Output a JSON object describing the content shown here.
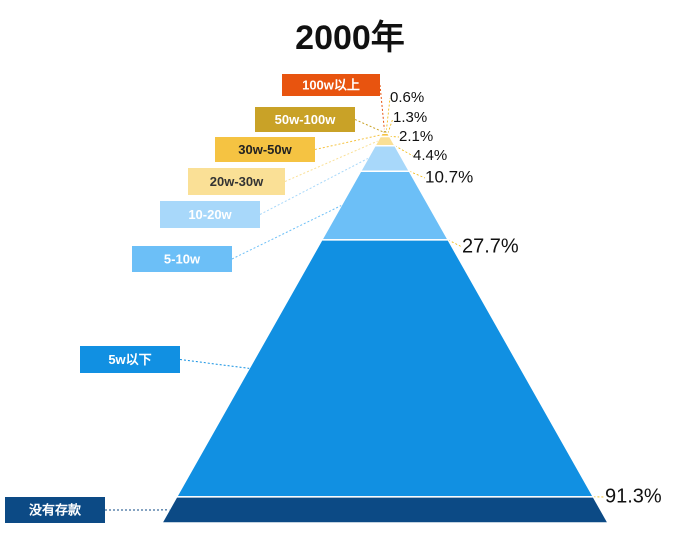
{
  "chart_data": {
    "type": "pyramid",
    "title": "2000年",
    "categories": [
      "100w以上",
      "50w-100w",
      "30w-50w",
      "20w-30w",
      "10-20w",
      "5-10w",
      "5w以下",
      "没有存款"
    ],
    "values": [
      0.6,
      1.3,
      2.1,
      4.4,
      10.7,
      27.7,
      91.3,
      null
    ],
    "value_labels": [
      "0.6%",
      "1.3%",
      "2.1%",
      "4.4%",
      "10.7%",
      "27.7%",
      "91.3%",
      null
    ],
    "colors": [
      "#e8540f",
      "#c9a227",
      "#f5c342",
      "#fae096",
      "#a8d8fa",
      "#6cbff7",
      "#1190e2",
      "#0c4a85"
    ]
  }
}
